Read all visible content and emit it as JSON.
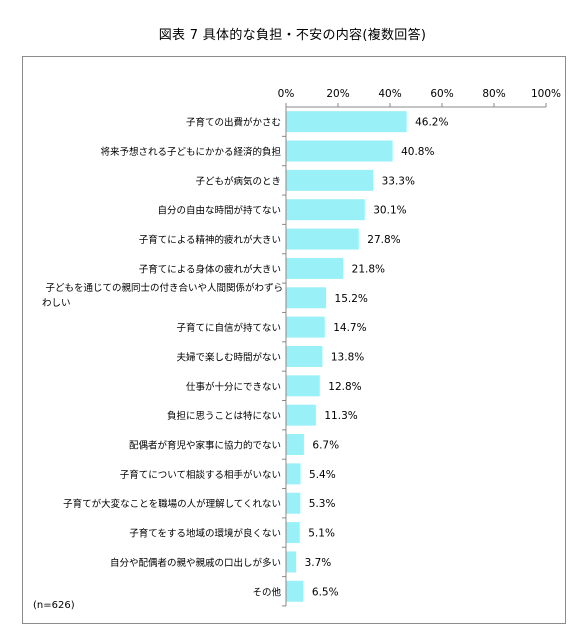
{
  "title": "図表 7 具体的な負担・不安の内容(複数回答)",
  "note": "(n=626)",
  "chart_data": {
    "type": "bar",
    "orientation": "horizontal",
    "categories": [
      "子育ての出費がかさむ",
      "将来予想される子どもにかかる経済的負担",
      "子どもが病気のとき",
      "自分の自由な時間が持てない",
      "子育てによる精神的疲れが大きい",
      "子育てによる身体の疲れが大きい",
      [
        "子どもを通じての親同士の付き合いや人間関係がわずら",
        "わしい"
      ],
      "子育てに自信が持てない",
      "夫婦で楽しむ時間がない",
      "仕事が十分にできない",
      "負担に思うことは特にない",
      "配偶者が育児や家事に協力的でない",
      "子育てについて相談する相手がいない",
      "子育てが大変なことを職場の人が理解してくれない",
      "子育てをする地域の環境が良くない",
      "自分や配偶者の親や親戚の口出しが多い",
      "その他"
    ],
    "values": [
      46.2,
      40.8,
      33.3,
      30.1,
      27.8,
      21.8,
      15.2,
      14.7,
      13.8,
      12.8,
      11.3,
      6.7,
      5.4,
      5.3,
      5.1,
      3.7,
      6.5
    ],
    "value_labels": [
      "46.2%",
      "40.8%",
      "33.3%",
      "30.1%",
      "27.8%",
      "21.8%",
      "15.2%",
      "14.7%",
      "13.8%",
      "12.8%",
      "11.3%",
      "6.7%",
      "5.4%",
      "5.3%",
      "5.1%",
      "3.7%",
      "6.5%"
    ],
    "xlim": [
      0,
      100
    ],
    "xticks": [
      0,
      20,
      40,
      60,
      80,
      100
    ],
    "xtick_labels": [
      "0%",
      "20%",
      "40%",
      "60%",
      "80%",
      "100%"
    ],
    "xaxis_position": "top",
    "grid": false,
    "legend": "none",
    "bar_color": "#99f0f7"
  }
}
